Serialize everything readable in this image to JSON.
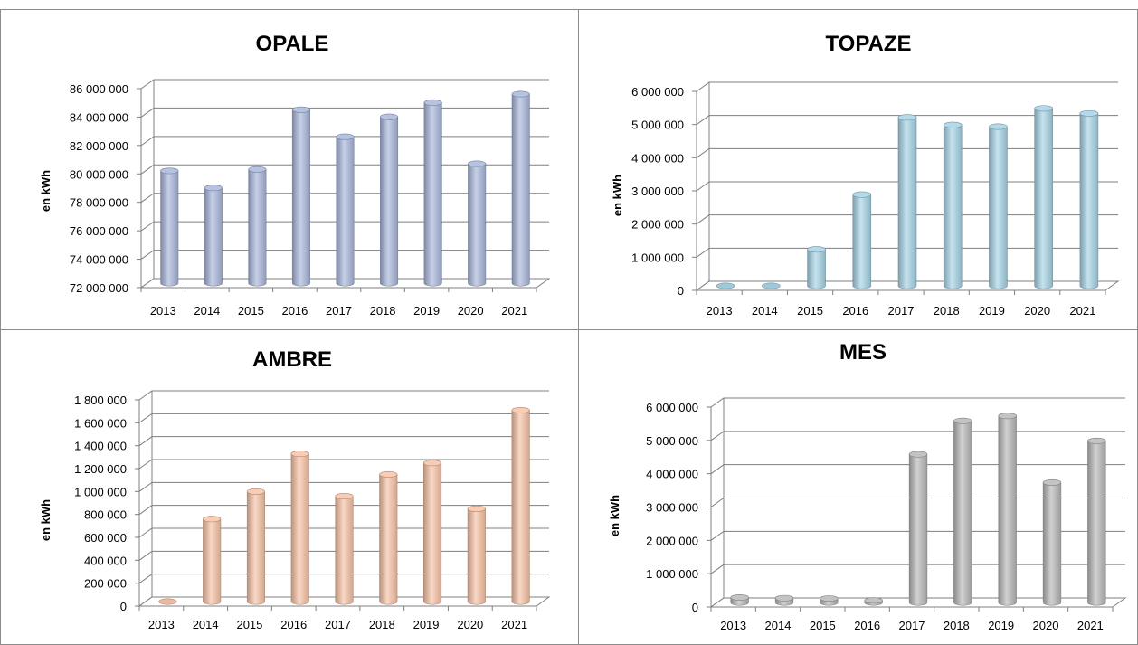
{
  "y_label": "en kWh",
  "chart_data": [
    {
      "type": "bar",
      "title": "OPALE",
      "ylabel": "en kWh",
      "categories": [
        "2013",
        "2014",
        "2015",
        "2016",
        "2017",
        "2018",
        "2019",
        "2020",
        "2021"
      ],
      "values": [
        79900000,
        78700000,
        80000000,
        84200000,
        82300000,
        83700000,
        84700000,
        80400000,
        85300000
      ],
      "ylim": [
        72000000,
        86000000
      ],
      "yticks": [
        72000000,
        74000000,
        76000000,
        78000000,
        80000000,
        82000000,
        84000000,
        86000000
      ],
      "ytick_labels": [
        "72 000 000",
        "74 000 000",
        "76 000 000",
        "78 000 000",
        "80 000 000",
        "82 000 000",
        "84 000 000",
        "86 000 000"
      ],
      "grid": true,
      "color": "#a9b7dc"
    },
    {
      "type": "bar",
      "title": "TOPAZE",
      "ylabel": "en kWh",
      "categories": [
        "2013",
        "2014",
        "2015",
        "2016",
        "2017",
        "2018",
        "2019",
        "2020",
        "2021"
      ],
      "values": [
        0,
        0,
        1100000,
        2750000,
        5080000,
        4850000,
        4800000,
        5350000,
        5200000
      ],
      "ylim": [
        0,
        6000000
      ],
      "yticks": [
        0,
        1000000,
        2000000,
        3000000,
        4000000,
        5000000,
        6000000
      ],
      "ytick_labels": [
        "0",
        "1 000 000",
        "2 000 000",
        "3 000 000",
        "4 000 000",
        "5 000 000",
        "6 000 000"
      ],
      "grid": true,
      "color": "#a6d4e6"
    },
    {
      "type": "bar",
      "title": "AMBRE",
      "ylabel": "en kWh",
      "categories": [
        "2013",
        "2014",
        "2015",
        "2016",
        "2017",
        "2018",
        "2019",
        "2020",
        "2021"
      ],
      "values": [
        0,
        720000,
        960000,
        1290000,
        920000,
        1110000,
        1210000,
        810000,
        1670000
      ],
      "ylim": [
        0,
        1800000
      ],
      "yticks": [
        0,
        200000,
        400000,
        600000,
        800000,
        1000000,
        1200000,
        1400000,
        1600000,
        1800000
      ],
      "ytick_labels": [
        "0",
        "200 000",
        "400 000",
        "600 000",
        "800 000",
        "1 000 000",
        "1 200 000",
        "1 400 000",
        "1 600 000",
        "1 800 000"
      ],
      "grid": true,
      "color": "#f8c3a6"
    },
    {
      "type": "bar",
      "title": "MES",
      "ylabel": "en kWh",
      "categories": [
        "2013",
        "2014",
        "2015",
        "2016",
        "2017",
        "2018",
        "2019",
        "2020",
        "2021"
      ],
      "values": [
        150000,
        130000,
        120000,
        60000,
        4450000,
        5450000,
        5600000,
        3600000,
        4850000
      ],
      "ylim": [
        0,
        6000000
      ],
      "yticks": [
        0,
        1000000,
        2000000,
        3000000,
        4000000,
        5000000,
        6000000
      ],
      "ytick_labels": [
        "0",
        "1 000 000",
        "2 000 000",
        "3 000 000",
        "4 000 000",
        "5 000 000",
        "6 000 000"
      ],
      "grid": true,
      "color": "#b8b8b8"
    }
  ]
}
